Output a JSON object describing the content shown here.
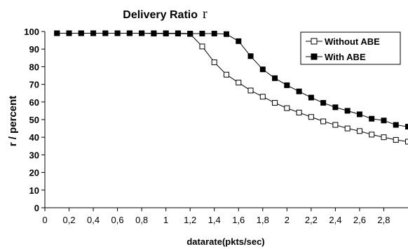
{
  "chart_data": {
    "type": "line",
    "title": "Delivery Ratio",
    "title_symbol": "r",
    "xlabel": "datarate(pkts/sec)",
    "ylabel": "r / percent",
    "xlim": [
      0,
      3
    ],
    "ylim": [
      0,
      100
    ],
    "y_ticks": [
      0,
      10,
      20,
      30,
      40,
      50,
      60,
      70,
      80,
      90,
      100
    ],
    "x_ticks": [
      "0",
      "0,2",
      "0,4",
      "0,6",
      "0,8",
      "1",
      "1,2",
      "1,4",
      "1,6",
      "1,8",
      "2",
      "2,2",
      "2,4",
      "2,6",
      "2,8"
    ],
    "x_tick_values": [
      0,
      0.2,
      0.4,
      0.6,
      0.8,
      1.0,
      1.2,
      1.4,
      1.6,
      1.8,
      2.0,
      2.2,
      2.4,
      2.6,
      2.8
    ],
    "grid": false,
    "legend_position": "top-right",
    "x": [
      0.1,
      0.2,
      0.3,
      0.4,
      0.5,
      0.6,
      0.7,
      0.8,
      0.9,
      1.0,
      1.1,
      1.2,
      1.3,
      1.4,
      1.5,
      1.6,
      1.7,
      1.8,
      1.9,
      2.0,
      2.1,
      2.2,
      2.3,
      2.4,
      2.5,
      2.6,
      2.7,
      2.8,
      2.9,
      3.0
    ],
    "series": [
      {
        "name": "Without ABE",
        "marker": "hollow-square",
        "color": "#000000",
        "values": [
          99,
          99,
          99,
          99,
          99,
          99,
          99,
          99,
          98.8,
          98.8,
          98.8,
          98.6,
          91.5,
          82.5,
          75.5,
          71,
          66.5,
          63,
          59.5,
          56.5,
          54,
          51.5,
          49,
          47,
          45,
          43.5,
          41.5,
          40,
          38.5,
          37.5
        ]
      },
      {
        "name": "With ABE",
        "marker": "filled-square",
        "color": "#000000",
        "values": [
          99,
          99,
          99,
          99,
          99,
          99,
          99,
          99,
          99,
          99,
          99,
          98.8,
          98.8,
          98.8,
          98.5,
          94.5,
          86,
          78.5,
          73.5,
          69.5,
          66,
          62.5,
          59.5,
          57,
          55,
          53,
          50.5,
          49.5,
          47,
          46
        ]
      }
    ]
  }
}
